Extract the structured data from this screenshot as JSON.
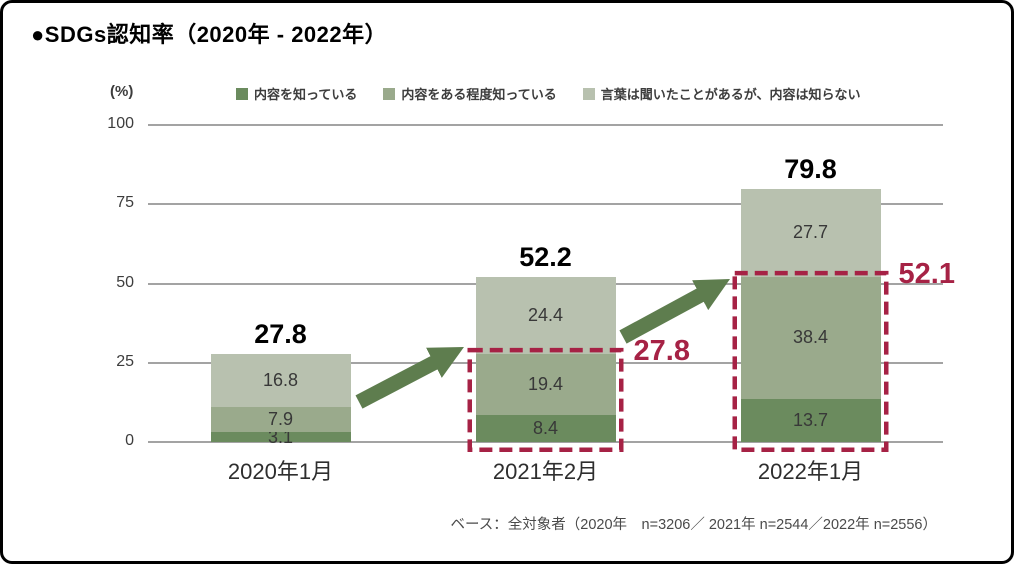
{
  "title": "●SDGs認知率（2020年 - 2022年）",
  "chart_data": {
    "type": "bar",
    "stacked": true,
    "unit_label": "(%)",
    "categories": [
      "2020年1月",
      "2021年2月",
      "2022年1月"
    ],
    "series": [
      {
        "name": "内容を知っている",
        "color": "#6b8b5e",
        "values": [
          3.1,
          8.4,
          13.7
        ]
      },
      {
        "name": "内容をある程度知っている",
        "color": "#9aaa8c",
        "values": [
          7.9,
          19.4,
          38.4
        ]
      },
      {
        "name": "言葉は聞いたことがあるが、内容は知らない",
        "color": "#b8c1af",
        "values": [
          16.8,
          24.4,
          27.7
        ]
      }
    ],
    "totals": [
      "27.8",
      "52.2",
      "79.8"
    ],
    "y_ticks": [
      0,
      25,
      50,
      75,
      100
    ],
    "ylim": [
      0,
      100
    ],
    "grid": true,
    "legend_position": "top",
    "highlights": [
      {
        "bar_index": 1,
        "value": 27.8,
        "label": "27.8"
      },
      {
        "bar_index": 2,
        "value": 52.1,
        "label": "52.1"
      }
    ],
    "highlight_color": "#a62245",
    "arrow_color": "#5e7d4e",
    "gridline_color": "#a3a3a3"
  },
  "footer": {
    "note": "ベース：全対象者（2020年　n=3206／ 2021年 n=2544／2022年 n=2556）"
  }
}
